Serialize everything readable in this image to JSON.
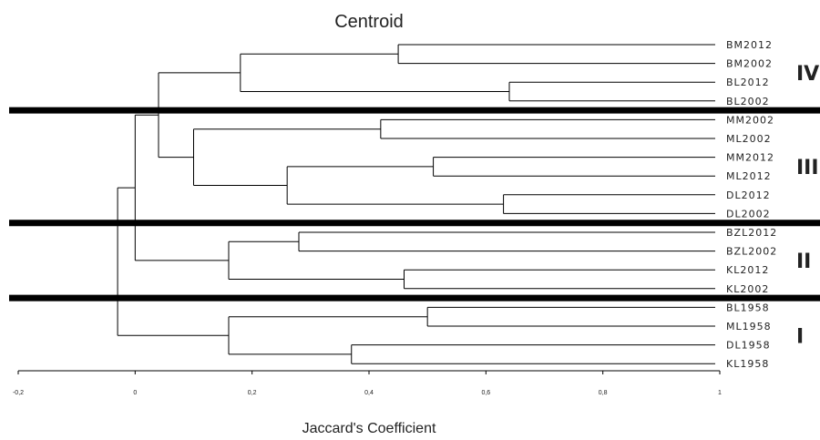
{
  "chart_data": {
    "type": "dendrogram",
    "title": "Centroid",
    "xlabel": "Jaccard's Coefficient",
    "ylabel": "",
    "xlim": [
      -0.2,
      1
    ],
    "x_ticks": [
      {
        "value": -0.2,
        "label": "-0,2"
      },
      {
        "value": 0,
        "label": "0"
      },
      {
        "value": 0.2,
        "label": "0,2"
      },
      {
        "value": 0.4,
        "label": "0,4"
      },
      {
        "value": 0.6,
        "label": "0,6"
      },
      {
        "value": 0.8,
        "label": "0,8"
      },
      {
        "value": 1,
        "label": "1"
      }
    ],
    "leaves": [
      "BM2012",
      "BM2002",
      "BL2012",
      "BL2002",
      "MM2002",
      "ML2002",
      "MM2012",
      "ML2012",
      "DL2012",
      "DL2002",
      "BZL2012",
      "BZL2002",
      "KL2012",
      "KL2002",
      "BL1958",
      "ML1958",
      "DL1958",
      "KL1958"
    ],
    "merges": [
      {
        "left": "BM2012",
        "right": "BM2002",
        "similarity": 0.45
      },
      {
        "left": "BL2012",
        "right": "BL2002",
        "similarity": 0.64
      },
      {
        "left": 0,
        "right": 1,
        "similarity": 0.18
      },
      {
        "left": "MM2002",
        "right": "ML2002",
        "similarity": 0.42
      },
      {
        "left": "MM2012",
        "right": "ML2012",
        "similarity": 0.51
      },
      {
        "left": "DL2012",
        "right": "DL2002",
        "similarity": 0.63
      },
      {
        "left": 4,
        "right": 5,
        "similarity": 0.26
      },
      {
        "left": 3,
        "right": 6,
        "similarity": 0.1
      },
      {
        "left": 2,
        "right": 7,
        "similarity": 0.04
      },
      {
        "left": "BZL2012",
        "right": "BZL2002",
        "similarity": 0.28
      },
      {
        "left": "KL2012",
        "right": "KL2002",
        "similarity": 0.46
      },
      {
        "left": 9,
        "right": 10,
        "similarity": 0.16
      },
      {
        "left": 8,
        "right": 11,
        "similarity": 0.0
      },
      {
        "left": "BL1958",
        "right": "ML1958",
        "similarity": 0.5
      },
      {
        "left": "DL1958",
        "right": "KL1958",
        "similarity": 0.37
      },
      {
        "left": 13,
        "right": 14,
        "similarity": 0.16
      },
      {
        "left": 12,
        "right": 15,
        "similarity": -0.03
      }
    ],
    "groups": [
      {
        "label": "IV",
        "leaves": [
          "BM2012",
          "BM2002",
          "BL2012",
          "BL2002"
        ]
      },
      {
        "label": "III",
        "leaves": [
          "MM2002",
          "ML2002",
          "MM2012",
          "ML2012",
          "DL2012",
          "DL2002"
        ]
      },
      {
        "label": "II",
        "leaves": [
          "BZL2012",
          "BZL2002",
          "KL2012",
          "KL2002"
        ]
      },
      {
        "label": "I",
        "leaves": [
          "BL1958",
          "ML1958",
          "DL1958",
          "KL1958"
        ]
      }
    ],
    "separators_after_group": [
      "IV",
      "III",
      "II"
    ],
    "grid": false,
    "colors": {
      "lines": "#000000",
      "background": "#ffffff"
    }
  }
}
